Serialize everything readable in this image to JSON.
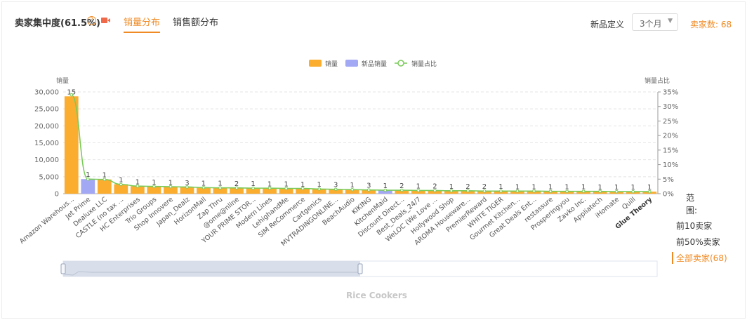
{
  "header": {
    "title": "卖家集中度(61.5%)",
    "help_glyph": "?",
    "tabs": [
      {
        "label": "销量分布",
        "active": true
      },
      {
        "label": "销售额分布",
        "active": false
      }
    ],
    "new_def_label": "新品定义",
    "new_def_value": "3个月",
    "sellers_count": "卖家数: 68"
  },
  "range_panel": {
    "title": "范围:",
    "options": [
      {
        "label": "前10卖家",
        "active": false
      },
      {
        "label": "前50%卖家",
        "active": false
      },
      {
        "label": "全部卖家(68)",
        "active": true
      }
    ]
  },
  "caption": "Rice Cookers",
  "colors": {
    "sales": "#fbad2f",
    "new_sales": "#a3a8f5",
    "share": "#7acb5a",
    "accent": "#f08a24"
  },
  "chart_data": {
    "type": "bar",
    "legend": [
      "销量",
      "新品销量",
      "销量占比"
    ],
    "legend_position": "top-center",
    "ylabel_left": "销量",
    "ylabel_right": "销量占比",
    "ylim_left": [
      0,
      30000
    ],
    "ylim_right": [
      0,
      35
    ],
    "yticks_left": [
      "0",
      "5,000",
      "10,000",
      "15,000",
      "20,000",
      "25,000",
      "30,000"
    ],
    "yticks_right": [
      "0%",
      "5%",
      "10%",
      "15%",
      "20%",
      "25%",
      "30%",
      "35%"
    ],
    "grid": true,
    "categories": [
      "Amazon Warehous...",
      "Jet Prime",
      "Dealuxe LLC",
      "CASTLE (no tax ...",
      "HC Enterprises",
      "Trio Groups",
      "Shop Innovere",
      "Japan_Dealz",
      "HorizonMall",
      "Zap Thru",
      "@ome@nline",
      "YOUR PRIME STOR...",
      "Modern Lines",
      "LehighandMe",
      "SIM ReCommerce",
      "Cartgenics",
      "MVTRADINGONLINE...",
      "BeachAudio",
      "KIKING",
      "KitchenMaid",
      "Discount Direct...",
      "Best_Deals_24/7",
      "WeLOC (We Love ...",
      "Hollywood Shop",
      "AROMA Houseware...",
      "PremierReward",
      "WHITE TIGER",
      "Gourmet Kitchen...",
      "Great Deals Ent...",
      "restassure",
      "Prosperingyou",
      "Zavko Inc.",
      "Appliatech",
      "iHomate",
      "Quill",
      "Glue Theory"
    ],
    "series": [
      {
        "name": "销量",
        "values": [
          28700,
          0,
          4200,
          2800,
          2200,
          2100,
          2000,
          1900,
          1800,
          1750,
          1700,
          1650,
          1600,
          1550,
          1500,
          1400,
          1300,
          1200,
          1100,
          0,
          1000,
          950,
          900,
          850,
          820,
          800,
          780,
          760,
          740,
          720,
          700,
          680,
          660,
          640,
          620,
          600
        ]
      },
      {
        "name": "新品销量",
        "values": [
          0,
          4300,
          0,
          0,
          0,
          0,
          0,
          0,
          0,
          0,
          0,
          0,
          0,
          0,
          0,
          0,
          0,
          0,
          0,
          1000,
          0,
          0,
          0,
          0,
          0,
          0,
          0,
          0,
          0,
          0,
          0,
          0,
          0,
          0,
          0,
          0
        ]
      },
      {
        "name": "销量占比",
        "values": [
          34,
          5,
          4.9,
          3.2,
          2.6,
          2.5,
          2.4,
          2.3,
          2.1,
          2.0,
          2.0,
          1.9,
          1.9,
          1.8,
          1.8,
          1.6,
          1.5,
          1.4,
          1.3,
          1.2,
          1.2,
          1.1,
          1.1,
          1.0,
          1.0,
          0.9,
          0.9,
          0.9,
          0.9,
          0.8,
          0.8,
          0.8,
          0.8,
          0.7,
          0.7,
          0.7
        ]
      }
    ],
    "bar_labels": [
      "15",
      "1",
      "1",
      "1",
      "1",
      "1",
      "1",
      "3",
      "1",
      "1",
      "2",
      "1",
      "1",
      "1",
      "1",
      "1",
      "3",
      "1",
      "3",
      "1",
      "2",
      "1",
      "2",
      "1",
      "2",
      "2",
      "1",
      "1",
      "1",
      "1",
      "1",
      "1",
      "1",
      "1",
      "1",
      "1"
    ],
    "datazoom_range": [
      0,
      50
    ]
  }
}
